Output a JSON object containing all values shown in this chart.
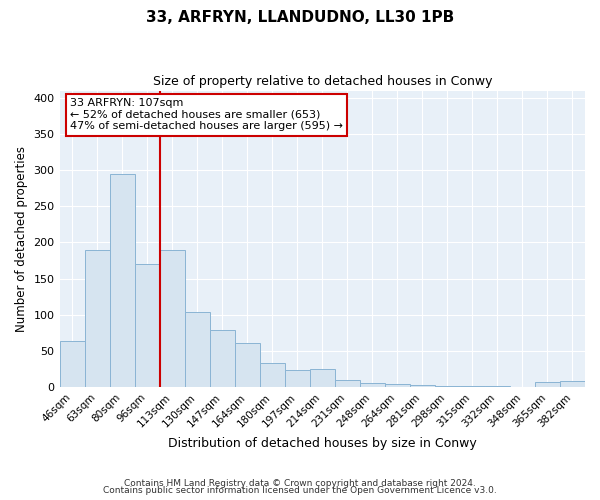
{
  "title": "33, ARFRYN, LLANDUDNO, LL30 1PB",
  "subtitle": "Size of property relative to detached houses in Conwy",
  "xlabel": "Distribution of detached houses by size in Conwy",
  "ylabel": "Number of detached properties",
  "categories": [
    "46sqm",
    "63sqm",
    "80sqm",
    "96sqm",
    "113sqm",
    "130sqm",
    "147sqm",
    "164sqm",
    "180sqm",
    "197sqm",
    "214sqm",
    "231sqm",
    "248sqm",
    "264sqm",
    "281sqm",
    "298sqm",
    "315sqm",
    "332sqm",
    "348sqm",
    "365sqm",
    "382sqm"
  ],
  "values": [
    63,
    190,
    295,
    170,
    190,
    104,
    79,
    61,
    33,
    23,
    25,
    10,
    6,
    4,
    3,
    1,
    1,
    2,
    0,
    7,
    8
  ],
  "bar_color": "#d6e4f0",
  "bar_edge_color": "#8ab4d4",
  "vline_index": 3.5,
  "annotation_label": "33 ARFRYN: 107sqm",
  "annotation_line1": "← 52% of detached houses are smaller (653)",
  "annotation_line2": "47% of semi-detached houses are larger (595) →",
  "annotation_box_facecolor": "#ffffff",
  "annotation_box_edgecolor": "#cc0000",
  "vline_color": "#cc0000",
  "ylim": [
    0,
    410
  ],
  "yticks": [
    0,
    50,
    100,
    150,
    200,
    250,
    300,
    350,
    400
  ],
  "footer1": "Contains HM Land Registry data © Crown copyright and database right 2024.",
  "footer2": "Contains public sector information licensed under the Open Government Licence v3.0.",
  "bg_color": "#ffffff",
  "plot_bg_color": "#e8f0f8"
}
